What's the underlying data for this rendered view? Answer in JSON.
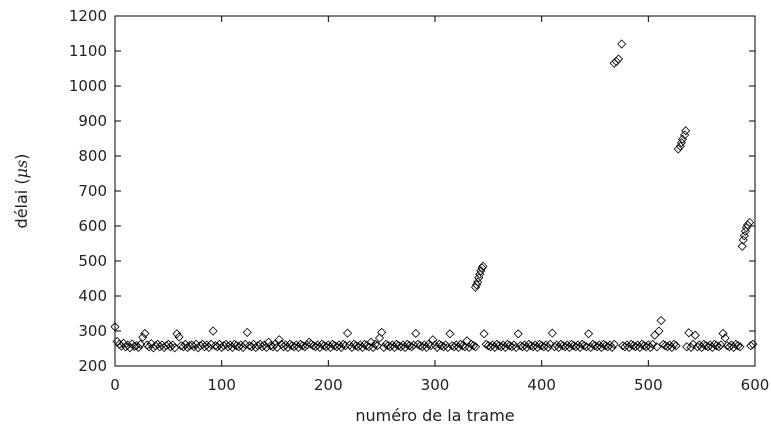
{
  "chart_data": {
    "type": "scatter",
    "xlabel": "numéro de la trame",
    "ylabel_prefix": "délai (",
    "ylabel_unit": "μs",
    "ylabel_suffix": ")",
    "xlim": [
      0,
      600
    ],
    "ylim": [
      200,
      1200
    ],
    "xticks": [
      0,
      100,
      200,
      300,
      400,
      500,
      600
    ],
    "yticks": [
      200,
      300,
      400,
      500,
      600,
      700,
      800,
      900,
      1000,
      1100,
      1200
    ],
    "grid": false,
    "marker": "diamond",
    "series": [
      {
        "points": [
          [
            0,
            312
          ],
          [
            2,
            270
          ],
          [
            4,
            262
          ],
          [
            6,
            257
          ],
          [
            8,
            265
          ],
          [
            10,
            255
          ],
          [
            12,
            260
          ],
          [
            14,
            252
          ],
          [
            16,
            263
          ],
          [
            18,
            256
          ],
          [
            20,
            258
          ],
          [
            22,
            253
          ],
          [
            24,
            262
          ],
          [
            26,
            282
          ],
          [
            28,
            293
          ],
          [
            30,
            260
          ],
          [
            32,
            255
          ],
          [
            34,
            264
          ],
          [
            36,
            252
          ],
          [
            38,
            258
          ],
          [
            40,
            262
          ],
          [
            42,
            255
          ],
          [
            44,
            260
          ],
          [
            46,
            253
          ],
          [
            48,
            258
          ],
          [
            50,
            262
          ],
          [
            52,
            255
          ],
          [
            54,
            260
          ],
          [
            56,
            252
          ],
          [
            58,
            292
          ],
          [
            60,
            283
          ],
          [
            62,
            258
          ],
          [
            64,
            255
          ],
          [
            66,
            262
          ],
          [
            68,
            253
          ],
          [
            70,
            258
          ],
          [
            72,
            260
          ],
          [
            74,
            255
          ],
          [
            76,
            262
          ],
          [
            78,
            252
          ],
          [
            80,
            258
          ],
          [
            82,
            262
          ],
          [
            84,
            255
          ],
          [
            86,
            260
          ],
          [
            88,
            253
          ],
          [
            90,
            262
          ],
          [
            92,
            300
          ],
          [
            94,
            258
          ],
          [
            96,
            255
          ],
          [
            98,
            262
          ],
          [
            100,
            253
          ],
          [
            102,
            258
          ],
          [
            104,
            262
          ],
          [
            106,
            255
          ],
          [
            108,
            260
          ],
          [
            110,
            253
          ],
          [
            112,
            262
          ],
          [
            114,
            258
          ],
          [
            116,
            255
          ],
          [
            118,
            260
          ],
          [
            120,
            253
          ],
          [
            122,
            262
          ],
          [
            124,
            296
          ],
          [
            126,
            258
          ],
          [
            128,
            255
          ],
          [
            130,
            262
          ],
          [
            132,
            253
          ],
          [
            134,
            258
          ],
          [
            136,
            262
          ],
          [
            138,
            255
          ],
          [
            140,
            260
          ],
          [
            142,
            253
          ],
          [
            144,
            268
          ],
          [
            146,
            258
          ],
          [
            148,
            255
          ],
          [
            150,
            262
          ],
          [
            152,
            253
          ],
          [
            154,
            275
          ],
          [
            156,
            262
          ],
          [
            158,
            255
          ],
          [
            160,
            260
          ],
          [
            162,
            253
          ],
          [
            164,
            262
          ],
          [
            166,
            258
          ],
          [
            168,
            255
          ],
          [
            170,
            260
          ],
          [
            172,
            253
          ],
          [
            174,
            262
          ],
          [
            176,
            258
          ],
          [
            178,
            255
          ],
          [
            180,
            260
          ],
          [
            182,
            268
          ],
          [
            184,
            262
          ],
          [
            186,
            258
          ],
          [
            188,
            255
          ],
          [
            190,
            260
          ],
          [
            192,
            253
          ],
          [
            194,
            262
          ],
          [
            196,
            258
          ],
          [
            198,
            255
          ],
          [
            200,
            260
          ],
          [
            202,
            253
          ],
          [
            204,
            262
          ],
          [
            206,
            258
          ],
          [
            208,
            255
          ],
          [
            210,
            260
          ],
          [
            212,
            253
          ],
          [
            214,
            262
          ],
          [
            216,
            258
          ],
          [
            218,
            294
          ],
          [
            220,
            260
          ],
          [
            222,
            253
          ],
          [
            224,
            262
          ],
          [
            226,
            258
          ],
          [
            228,
            255
          ],
          [
            230,
            260
          ],
          [
            232,
            253
          ],
          [
            234,
            262
          ],
          [
            236,
            258
          ],
          [
            238,
            255
          ],
          [
            240,
            268
          ],
          [
            242,
            253
          ],
          [
            244,
            262
          ],
          [
            246,
            258
          ],
          [
            248,
            280
          ],
          [
            250,
            296
          ],
          [
            252,
            253
          ],
          [
            254,
            262
          ],
          [
            256,
            258
          ],
          [
            258,
            255
          ],
          [
            260,
            260
          ],
          [
            262,
            253
          ],
          [
            264,
            262
          ],
          [
            266,
            258
          ],
          [
            268,
            255
          ],
          [
            270,
            260
          ],
          [
            272,
            253
          ],
          [
            274,
            262
          ],
          [
            276,
            258
          ],
          [
            278,
            255
          ],
          [
            280,
            260
          ],
          [
            282,
            293
          ],
          [
            284,
            262
          ],
          [
            286,
            258
          ],
          [
            288,
            255
          ],
          [
            290,
            260
          ],
          [
            292,
            253
          ],
          [
            294,
            262
          ],
          [
            296,
            258
          ],
          [
            298,
            275
          ],
          [
            300,
            260
          ],
          [
            302,
            253
          ],
          [
            304,
            262
          ],
          [
            306,
            258
          ],
          [
            308,
            255
          ],
          [
            310,
            260
          ],
          [
            312,
            253
          ],
          [
            314,
            292
          ],
          [
            316,
            258
          ],
          [
            318,
            255
          ],
          [
            320,
            260
          ],
          [
            322,
            253
          ],
          [
            324,
            262
          ],
          [
            326,
            258
          ],
          [
            328,
            255
          ],
          [
            330,
            272
          ],
          [
            332,
            253
          ],
          [
            334,
            262
          ],
          [
            336,
            258
          ],
          [
            338,
            255
          ],
          [
            338,
            425
          ],
          [
            339,
            432
          ],
          [
            340,
            440
          ],
          [
            341,
            452
          ],
          [
            342,
            462
          ],
          [
            343,
            472
          ],
          [
            344,
            480
          ],
          [
            345,
            485
          ],
          [
            346,
            292
          ],
          [
            348,
            262
          ],
          [
            350,
            258
          ],
          [
            352,
            255
          ],
          [
            354,
            260
          ],
          [
            356,
            253
          ],
          [
            358,
            262
          ],
          [
            360,
            258
          ],
          [
            362,
            255
          ],
          [
            364,
            260
          ],
          [
            366,
            253
          ],
          [
            368,
            262
          ],
          [
            370,
            258
          ],
          [
            372,
            255
          ],
          [
            374,
            260
          ],
          [
            376,
            253
          ],
          [
            378,
            292
          ],
          [
            380,
            258
          ],
          [
            382,
            255
          ],
          [
            384,
            260
          ],
          [
            386,
            253
          ],
          [
            388,
            262
          ],
          [
            390,
            258
          ],
          [
            392,
            255
          ],
          [
            394,
            260
          ],
          [
            396,
            253
          ],
          [
            398,
            262
          ],
          [
            400,
            258
          ],
          [
            402,
            255
          ],
          [
            404,
            260
          ],
          [
            406,
            253
          ],
          [
            408,
            262
          ],
          [
            410,
            294
          ],
          [
            412,
            255
          ],
          [
            414,
            260
          ],
          [
            416,
            253
          ],
          [
            418,
            262
          ],
          [
            420,
            258
          ],
          [
            422,
            255
          ],
          [
            424,
            260
          ],
          [
            426,
            253
          ],
          [
            428,
            262
          ],
          [
            430,
            258
          ],
          [
            432,
            255
          ],
          [
            434,
            260
          ],
          [
            436,
            253
          ],
          [
            438,
            262
          ],
          [
            440,
            258
          ],
          [
            442,
            255
          ],
          [
            444,
            292
          ],
          [
            446,
            253
          ],
          [
            448,
            262
          ],
          [
            450,
            258
          ],
          [
            452,
            255
          ],
          [
            454,
            260
          ],
          [
            456,
            253
          ],
          [
            458,
            262
          ],
          [
            460,
            258
          ],
          [
            462,
            255
          ],
          [
            464,
            260
          ],
          [
            466,
            253
          ],
          [
            468,
            262
          ],
          [
            468,
            1065
          ],
          [
            470,
            1070
          ],
          [
            472,
            1077
          ],
          [
            475,
            1120
          ],
          [
            476,
            258
          ],
          [
            478,
            255
          ],
          [
            480,
            260
          ],
          [
            482,
            253
          ],
          [
            484,
            262
          ],
          [
            486,
            258
          ],
          [
            488,
            255
          ],
          [
            490,
            260
          ],
          [
            492,
            253
          ],
          [
            494,
            262
          ],
          [
            496,
            258
          ],
          [
            498,
            255
          ],
          [
            500,
            260
          ],
          [
            502,
            253
          ],
          [
            504,
            262
          ],
          [
            506,
            288
          ],
          [
            508,
            255
          ],
          [
            510,
            300
          ],
          [
            512,
            330
          ],
          [
            514,
            262
          ],
          [
            516,
            258
          ],
          [
            518,
            255
          ],
          [
            520,
            260
          ],
          [
            522,
            253
          ],
          [
            524,
            262
          ],
          [
            526,
            258
          ],
          [
            528,
            820
          ],
          [
            530,
            828
          ],
          [
            531,
            838
          ],
          [
            532,
            848
          ],
          [
            534,
            860
          ],
          [
            535,
            872
          ],
          [
            536,
            255
          ],
          [
            538,
            295
          ],
          [
            540,
            253
          ],
          [
            542,
            262
          ],
          [
            544,
            288
          ],
          [
            546,
            255
          ],
          [
            548,
            260
          ],
          [
            550,
            253
          ],
          [
            552,
            262
          ],
          [
            554,
            258
          ],
          [
            556,
            255
          ],
          [
            558,
            260
          ],
          [
            560,
            253
          ],
          [
            562,
            262
          ],
          [
            564,
            258
          ],
          [
            566,
            255
          ],
          [
            568,
            260
          ],
          [
            570,
            293
          ],
          [
            572,
            280
          ],
          [
            574,
            258
          ],
          [
            576,
            255
          ],
          [
            578,
            260
          ],
          [
            580,
            253
          ],
          [
            582,
            262
          ],
          [
            584,
            258
          ],
          [
            586,
            255
          ],
          [
            588,
            542
          ],
          [
            589,
            560
          ],
          [
            590,
            572
          ],
          [
            591,
            585
          ],
          [
            592,
            595
          ],
          [
            593,
            603
          ],
          [
            595,
            610
          ],
          [
            596,
            258
          ],
          [
            598,
            262
          ]
        ]
      }
    ]
  }
}
